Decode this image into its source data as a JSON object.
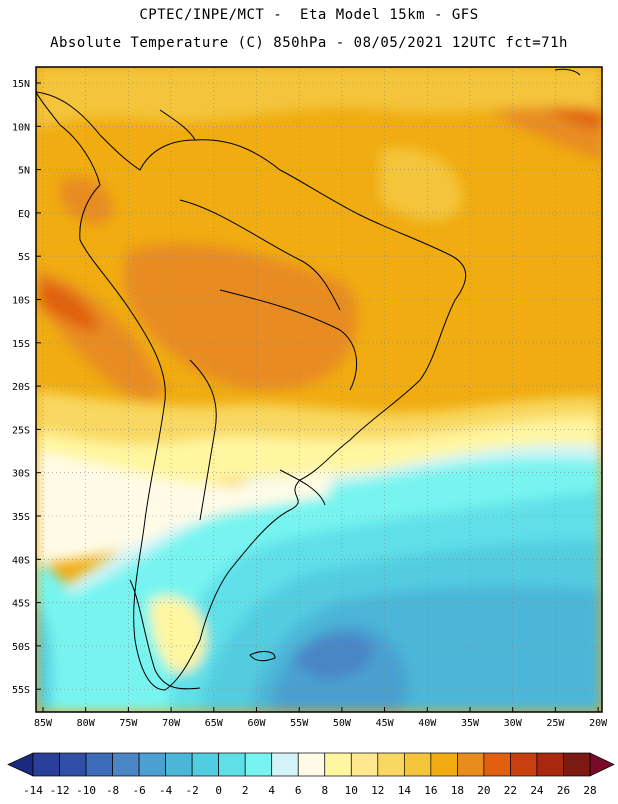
{
  "header": {
    "line1": "CPTEC/INPE/MCT -  Eta Model 15km - GFS",
    "line2": "Absolute Temperature (C) 850hPa - 08/05/2021 12UTC fct=71h"
  },
  "map": {
    "latitude_labels": [
      "15N",
      "10N",
      "5N",
      "EQ",
      "5S",
      "10S",
      "15S",
      "20S",
      "25S",
      "30S",
      "35S",
      "40S",
      "45S",
      "50S",
      "55S"
    ],
    "longitude_labels": [
      "85W",
      "80W",
      "75W",
      "70W",
      "65W",
      "60W",
      "55W",
      "50W",
      "45W",
      "40W",
      "35W",
      "30W",
      "25W",
      "20W"
    ]
  },
  "colorbar": {
    "tick_labels": [
      "-14",
      "-12",
      "-10",
      "-8",
      "-6",
      "-4",
      "-2",
      "0",
      "2",
      "4",
      "6",
      "8",
      "10",
      "12",
      "14",
      "16",
      "18",
      "20",
      "22",
      "24",
      "26",
      "28"
    ],
    "colors": [
      "#2a3f9a",
      "#3050a8",
      "#3c6cb8",
      "#4a86c6",
      "#4aa0d0",
      "#4bb6d8",
      "#52cce0",
      "#5fe0e8",
      "#77f4f0",
      "#d2f4f8",
      "#fffbe6",
      "#fff6a0",
      "#ffe890",
      "#f8d860",
      "#f4c43a",
      "#f0ac10",
      "#e88c20",
      "#e06010",
      "#c84010",
      "#a82810",
      "#7a1a10"
    ],
    "under_color": "#1a2a80",
    "over_color": "#7a0a2a"
  }
}
